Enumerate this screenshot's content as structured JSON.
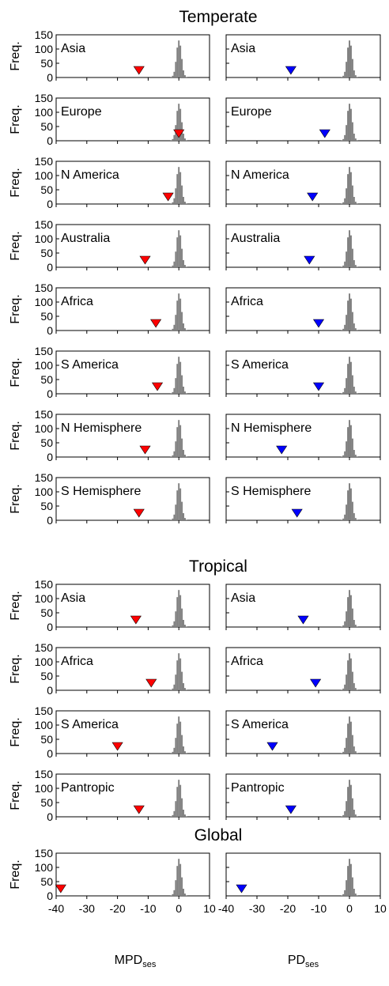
{
  "chart_data": {
    "type": "bar",
    "description_hint": "",
    "freq_label": "Freq.",
    "y_ticks": [
      "0",
      "50",
      "100",
      "150"
    ],
    "ylim": [
      0,
      150
    ],
    "xlim": [
      -40,
      10
    ],
    "x_ticks": [
      "-40",
      "-30",
      "-20",
      "-10",
      "0",
      "10"
    ],
    "xlabel_left": {
      "main": "MPD",
      "sub": "ses"
    },
    "xlabel_right": {
      "main": "PD",
      "sub": "ses"
    },
    "marker_colors": {
      "MPD": "#ff0000",
      "PD": "#0000ff"
    },
    "hist_color": "#808080",
    "null_histogram": {
      "bin_width": 0.5,
      "bins": [
        {
          "x": -2.5,
          "freq": 2
        },
        {
          "x": -2.0,
          "freq": 6
        },
        {
          "x": -1.5,
          "freq": 20
        },
        {
          "x": -1.0,
          "freq": 55
        },
        {
          "x": -0.5,
          "freq": 105
        },
        {
          "x": 0.0,
          "freq": 130
        },
        {
          "x": 0.5,
          "freq": 112
        },
        {
          "x": 1.0,
          "freq": 65
        },
        {
          "x": 1.5,
          "freq": 25
        },
        {
          "x": 2.0,
          "freq": 8
        },
        {
          "x": 2.5,
          "freq": 2
        }
      ]
    },
    "groups": [
      {
        "title": "Temperate",
        "rows": [
          {
            "region": "Asia",
            "MPD": -13,
            "PD": -19
          },
          {
            "region": "Europe",
            "MPD": 0,
            "PD": -8
          },
          {
            "region": "N America",
            "MPD": -3.5,
            "PD": -12
          },
          {
            "region": "Australia",
            "MPD": -11,
            "PD": -13
          },
          {
            "region": "Africa",
            "MPD": -7.5,
            "PD": -10
          },
          {
            "region": "S America",
            "MPD": -7,
            "PD": -10
          },
          {
            "region": "N Hemisphere",
            "MPD": -11,
            "PD": -22
          },
          {
            "region": "S Hemisphere",
            "MPD": -13,
            "PD": -17
          }
        ]
      },
      {
        "title": "Tropical",
        "rows": [
          {
            "region": "Asia",
            "MPD": -14,
            "PD": -15
          },
          {
            "region": "Africa",
            "MPD": -9,
            "PD": -11
          },
          {
            "region": "S America",
            "MPD": -20,
            "PD": -25
          },
          {
            "region": "Pantropic",
            "MPD": -13,
            "PD": -19
          }
        ]
      },
      {
        "title": "Global",
        "rows": [
          {
            "region": "",
            "MPD": -38.5,
            "PD": -35
          }
        ]
      }
    ]
  }
}
